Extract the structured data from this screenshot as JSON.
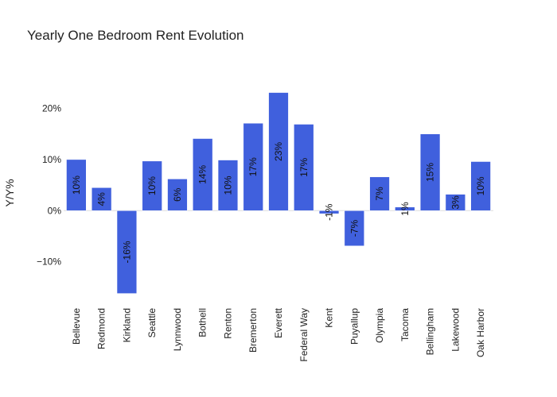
{
  "chart_data": {
    "type": "bar",
    "title": "Yearly One Bedroom Rent Evolution",
    "xlabel": "",
    "ylabel": "Y/Y%",
    "ylim": [
      -17.5,
      28
    ],
    "yticks": [
      {
        "value": -10,
        "label": "−10%"
      },
      {
        "value": 0,
        "label": "0%"
      },
      {
        "value": 10,
        "label": "10%"
      },
      {
        "value": 20,
        "label": "20%"
      }
    ],
    "bar_color": "#4060dd",
    "categories": [
      "Bellevue",
      "Redmond",
      "Kirkland",
      "Seattle",
      "Lynnwood",
      "Bothell",
      "Renton",
      "Bremerton",
      "Everett",
      "Federal Way",
      "Kent",
      "Puyallup",
      "Olympia",
      "Tacoma",
      "Bellingham",
      "Lakewood",
      "Oak Harbor"
    ],
    "values": [
      10,
      4.5,
      -16.2,
      9.7,
      6.2,
      14.1,
      9.9,
      17.1,
      23.1,
      16.9,
      -0.6,
      -6.9,
      6.6,
      0.7,
      15,
      3.2,
      9.6
    ],
    "labels": [
      "10%",
      "4%",
      "-16%",
      "10%",
      "6%",
      "14%",
      "10%",
      "17%",
      "23%",
      "17%",
      "-1%",
      "-7%",
      "7%",
      "1%",
      "15%",
      "3%",
      "10%"
    ]
  }
}
